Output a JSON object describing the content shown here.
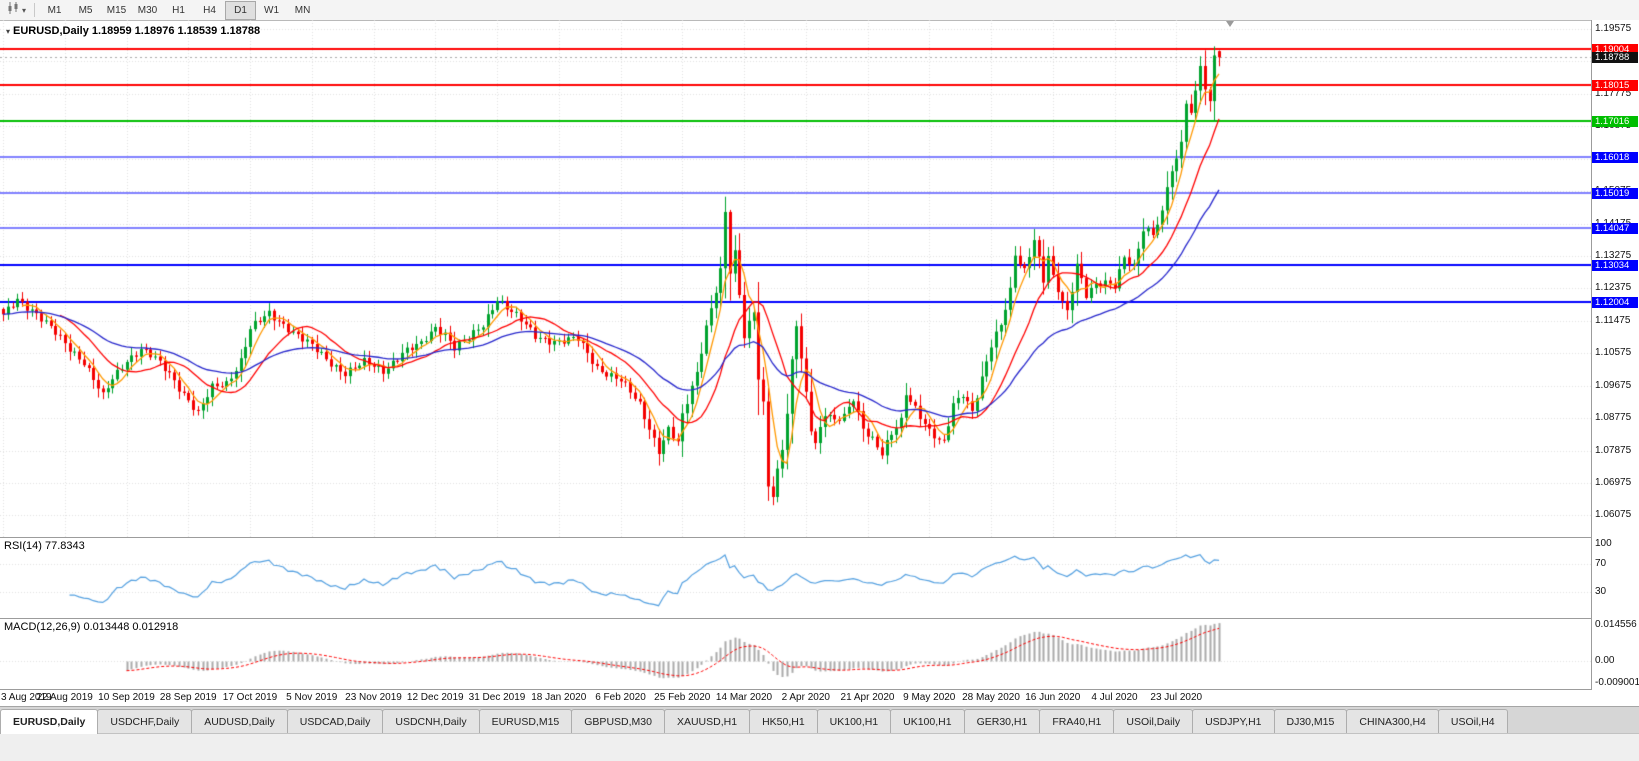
{
  "toolbar": {
    "chart_type_button": {
      "icon": "candlestick-chart-icon",
      "caret": "▾"
    },
    "timeframes": [
      "M1",
      "M5",
      "M15",
      "M30",
      "H1",
      "H4",
      "D1",
      "W1",
      "MN"
    ],
    "active_timeframe": "D1"
  },
  "chart_window": {
    "title": "EURUSD,Daily 1.18959 1.18976 1.18539 1.18788",
    "menu_glyph": "▾"
  },
  "chart_data": {
    "type": "candlestick",
    "symbol": "EURUSD",
    "timeframe": "Daily",
    "ohlc": {
      "open": 1.18959,
      "high": 1.18976,
      "low": 1.18539,
      "close": 1.18788
    },
    "current_price": 1.18788,
    "y_axis": {
      "min": 1.057,
      "max": 1.196,
      "tick_labels": [
        "1.19575",
        "1.18675",
        "1.17775",
        "1.16875",
        "1.15975",
        "1.15075",
        "1.14175",
        "1.13275",
        "1.12375",
        "1.11475",
        "1.10575",
        "1.09675",
        "1.08775",
        "1.07875",
        "1.06975",
        "1.06075"
      ]
    },
    "x_axis": {
      "bars_per_label": 13,
      "labels": [
        "3 Aug 2019",
        "22 Aug 2019",
        "10 Sep 2019",
        "28 Sep 2019",
        "17 Oct 2019",
        "5 Nov 2019",
        "23 Nov 2019",
        "12 Dec 2019",
        "31 Dec 2019",
        "18 Jan 2020",
        "6 Feb 2020",
        "25 Feb 2020",
        "14 Mar 2020",
        "2 Apr 2020",
        "21 Apr 2020",
        "9 May 2020",
        "28 May 2020",
        "16 Jun 2020",
        "4 Jul 2020",
        "23 Jul 2020"
      ]
    },
    "num_candles": 257,
    "close_waypoints": [
      [
        0,
        1.116
      ],
      [
        3,
        1.121
      ],
      [
        6,
        1.118
      ],
      [
        10,
        1.1125
      ],
      [
        13,
        1.1085
      ],
      [
        17,
        1.1035
      ],
      [
        21,
        1.0935
      ],
      [
        23,
        1.0985
      ],
      [
        26,
        1.104
      ],
      [
        29,
        1.107
      ],
      [
        32,
        1.104
      ],
      [
        35,
        1.1
      ],
      [
        39,
        1.093
      ],
      [
        41,
        1.089
      ],
      [
        44,
        1.096
      ],
      [
        47,
        1.0975
      ],
      [
        50,
        1.104
      ],
      [
        52,
        1.1125
      ],
      [
        56,
        1.1165
      ],
      [
        60,
        1.113
      ],
      [
        65,
        1.1075
      ],
      [
        68,
        1.104
      ],
      [
        72,
        1.1005
      ],
      [
        76,
        1.103
      ],
      [
        80,
        1.101
      ],
      [
        84,
        1.106
      ],
      [
        88,
        1.108
      ],
      [
        91,
        1.113
      ],
      [
        93,
        1.1115
      ],
      [
        95,
        1.1075
      ],
      [
        98,
        1.1095
      ],
      [
        101,
        1.1135
      ],
      [
        104,
        1.1212
      ],
      [
        108,
        1.116
      ],
      [
        112,
        1.1105
      ],
      [
        117,
        1.109
      ],
      [
        121,
        1.1095
      ],
      [
        125,
        1.102
      ],
      [
        130,
        1.098
      ],
      [
        134,
        1.0915
      ],
      [
        138,
        1.079
      ],
      [
        140,
        1.0845
      ],
      [
        142,
        1.0805
      ],
      [
        143,
        1.088
      ],
      [
        146,
        1.1005
      ],
      [
        148,
        1.1135
      ],
      [
        151,
        1.1285
      ],
      [
        152,
        1.1445
      ],
      [
        153,
        1.128
      ],
      [
        154,
        1.133
      ],
      [
        156,
        1.1105
      ],
      [
        158,
        1.118
      ],
      [
        159,
        1.0995
      ],
      [
        160,
        1.092
      ],
      [
        161,
        1.0695
      ],
      [
        162,
        1.066
      ],
      [
        163,
        1.0725
      ],
      [
        164,
        1.079
      ],
      [
        165,
        1.0885
      ],
      [
        166,
        1.103
      ],
      [
        167,
        1.114
      ],
      [
        168,
        1.1045
      ],
      [
        169,
        1.095
      ],
      [
        170,
        1.0855
      ],
      [
        171,
        1.081
      ],
      [
        173,
        1.089
      ],
      [
        175,
        1.0865
      ],
      [
        177,
        1.088
      ],
      [
        179,
        1.0935
      ],
      [
        181,
        1.0855
      ],
      [
        183,
        1.082
      ],
      [
        185,
        1.0775
      ],
      [
        187,
        1.083
      ],
      [
        189,
        1.087
      ],
      [
        190,
        1.095
      ],
      [
        192,
        1.091
      ],
      [
        195,
        1.084
      ],
      [
        197,
        1.081
      ],
      [
        198,
        1.0805
      ],
      [
        200,
        1.0915
      ],
      [
        202,
        1.095
      ],
      [
        204,
        1.09
      ],
      [
        206,
        1.0985
      ],
      [
        208,
        1.1075
      ],
      [
        210,
        1.1134
      ],
      [
        212,
        1.1234
      ],
      [
        213,
        1.1337
      ],
      [
        215,
        1.129
      ],
      [
        217,
        1.1373
      ],
      [
        219,
        1.1254
      ],
      [
        220,
        1.1323
      ],
      [
        221,
        1.1264
      ],
      [
        223,
        1.1205
      ],
      [
        224,
        1.1176
      ],
      [
        226,
        1.1308
      ],
      [
        228,
        1.1218
      ],
      [
        230,
        1.1242
      ],
      [
        232,
        1.125
      ],
      [
        234,
        1.1248
      ],
      [
        236,
        1.133
      ],
      [
        238,
        1.13
      ],
      [
        240,
        1.1397
      ],
      [
        242,
        1.1384
      ],
      [
        244,
        1.1445
      ],
      [
        245,
        1.1527
      ],
      [
        246,
        1.157
      ],
      [
        247,
        1.1596
      ],
      [
        248,
        1.1656
      ],
      [
        249,
        1.1752
      ],
      [
        250,
        1.1716
      ],
      [
        251,
        1.179
      ],
      [
        252,
        1.1847
      ],
      [
        253,
        1.1778
      ],
      [
        254,
        1.1762
      ],
      [
        255,
        1.188
      ],
      [
        256,
        1.18788
      ]
    ],
    "candle_overrides": {
      "152": {
        "h": 1.1492
      },
      "161": {
        "l": 1.0648
      },
      "162": {
        "l": 1.0636
      },
      "167": {
        "h": 1.1148
      },
      "255": {
        "h": 1.1909
      },
      "256": {
        "o": 1.18959,
        "h": 1.18976,
        "l": 1.18539,
        "c": 1.18788
      }
    },
    "horizontal_lines": [
      {
        "price": 1.19004,
        "color": "#FF0000",
        "width": 2
      },
      {
        "price": 1.18015,
        "color": "#FF0000",
        "width": 2
      },
      {
        "price": 1.17016,
        "color": "#00BE00",
        "width": 2
      },
      {
        "price": 1.16018,
        "color": "#0000FF",
        "width": 1
      },
      {
        "price": 1.15019,
        "color": "#0000FF",
        "width": 1
      },
      {
        "price": 1.14047,
        "color": "#0000FF",
        "width": 1
      },
      {
        "price": 1.13034,
        "color": "#0000FF",
        "width": 2
      },
      {
        "price": 1.12004,
        "color": "#0000FF",
        "width": 2
      }
    ],
    "moving_averages": [
      {
        "type": "sma",
        "period": 5,
        "color": "#FF9800"
      },
      {
        "type": "sma",
        "period": 13,
        "color": "#FF0000"
      },
      {
        "type": "ema",
        "period": 34,
        "color": "#2727CC"
      }
    ],
    "colors": {
      "up": "#00A32E",
      "down": "#F40000",
      "grid": "#E0E0E0",
      "rsi_line": "#54A0E0",
      "macd_hist": "#ABABAB",
      "macd_signal": "#FF0000",
      "current_line": "#A8A8A8",
      "current_tag_bg": "#111111"
    },
    "indicators": {
      "rsi": {
        "label": "RSI(14) 77.8343",
        "period": 14,
        "value": 77.8343,
        "levels": [
          100,
          70,
          30
        ]
      },
      "macd": {
        "label": "MACD(12,26,9) 0.013448 0.012918",
        "fast": 12,
        "slow": 26,
        "signal": 9,
        "value": 0.013448,
        "signal_value": 0.012918,
        "axis_values": [
          0.014556,
          0,
          -0.009001
        ],
        "axis_labels": [
          "0.014556",
          "0.00",
          "-0.009001"
        ]
      }
    }
  },
  "bottom_tabs": {
    "active_index": 0,
    "labels": [
      "EURUSD,Daily",
      "USDCHF,Daily",
      "AUDUSD,Daily",
      "USDCAD,Daily",
      "USDCNH,Daily",
      "EURUSD,M15",
      "GBPUSD,M30",
      "XAUUSD,H1",
      "HK50,H1",
      "UK100,H1",
      "UK100,H1",
      "GER30,H1",
      "FRA40,H1",
      "USOil,Daily",
      "USDJPY,H1",
      "DJ30,M15",
      "CHINA300,H4",
      "USOil,H4"
    ]
  }
}
